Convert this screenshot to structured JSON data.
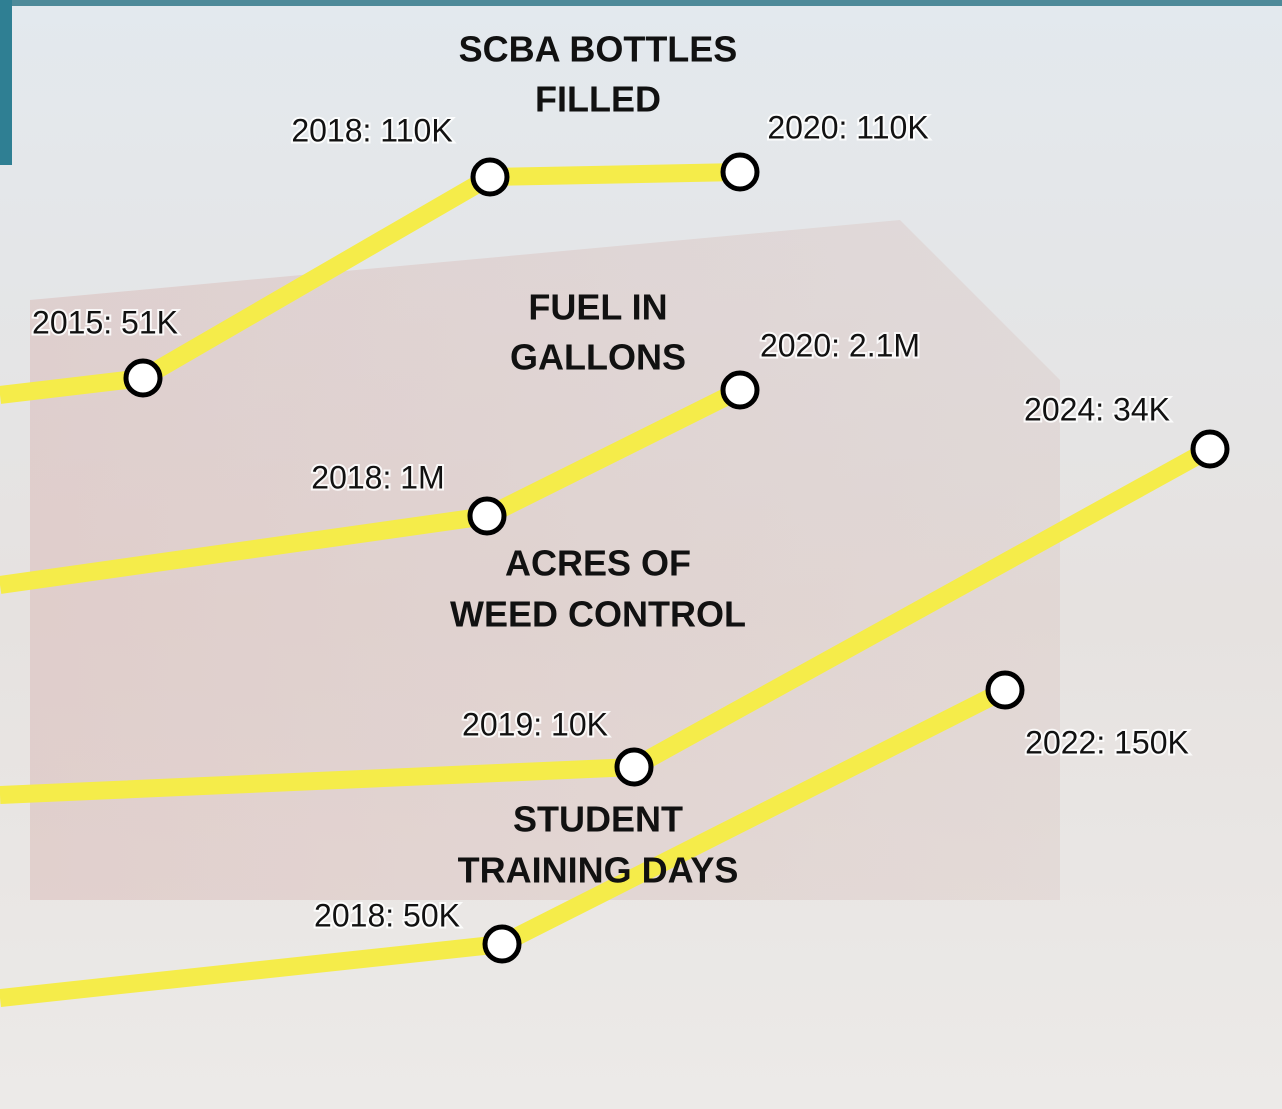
{
  "panels": [
    {
      "title_lines": [
        "SCBA BOTTLES",
        "FILLED"
      ],
      "points": [
        "2015: 51K",
        "2018: 110K",
        "2020: 110K"
      ]
    },
    {
      "title_lines": [
        "FUEL IN",
        "GALLONS"
      ],
      "points": [
        "2018: 1M",
        "2020: 2.1M"
      ]
    },
    {
      "title_lines": [
        "ACRES OF",
        "WEED CONTROL"
      ],
      "points": [
        "2019: 10K",
        "2024: 34K"
      ]
    },
    {
      "title_lines": [
        "STUDENT",
        "TRAINING DAYS"
      ],
      "points": [
        "2018: 50K",
        "2022: 150K"
      ]
    }
  ]
}
